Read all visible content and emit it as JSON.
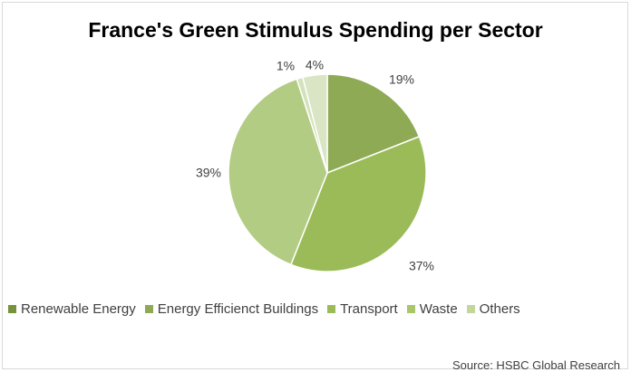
{
  "chart_data": {
    "type": "pie",
    "title": "France's Green Stimulus Spending per Sector",
    "source": "Source: HSBC Global Research",
    "legend_position": "bottom",
    "categories": [
      "Renewable Energy",
      "Energy Efficienct Buildings",
      "Transport",
      "Waste",
      "Others"
    ],
    "values": [
      19,
      37,
      39,
      1,
      4
    ],
    "labels": [
      "19%",
      "37%",
      "39%",
      "1%",
      "4%"
    ],
    "legend_colors": [
      "#76923c",
      "#8eaa55",
      "#9bbb59",
      "#a9c66a",
      "#c3d69b"
    ],
    "slice_colors": [
      "#8eaa55",
      "#9bbb59",
      "#b3cc84",
      "#d4e2bb",
      "#d9e5c4"
    ]
  }
}
